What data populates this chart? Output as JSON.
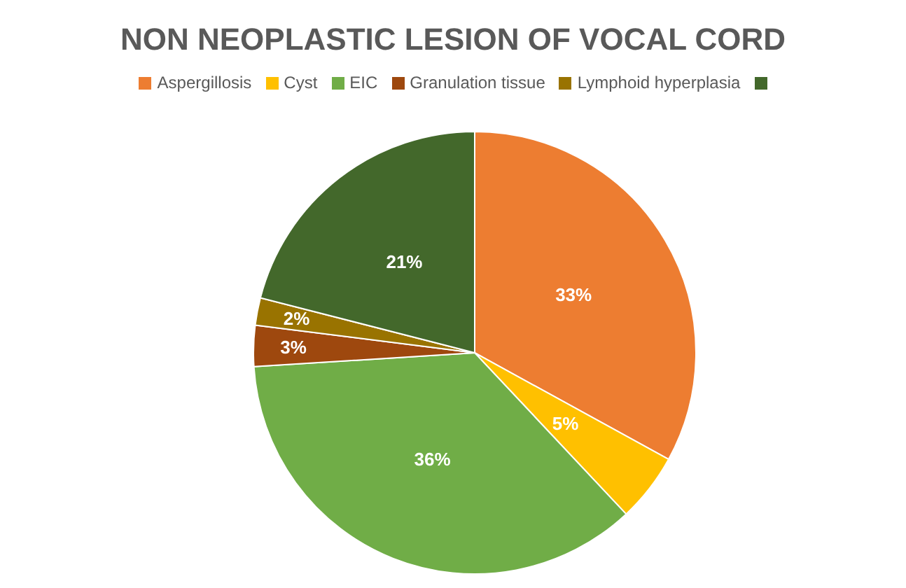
{
  "chart_data": {
    "type": "pie",
    "title": "NON NEOPLASTIC LESION OF VOCAL CORD",
    "categories": [
      "Aspergillosis",
      "Cyst",
      "EIC",
      "Granulation tissue",
      "Lymphoid hyperplasia",
      null
    ],
    "values": [
      33,
      5,
      36,
      3,
      2,
      21
    ],
    "value_labels": [
      "33%",
      "5%",
      "36%",
      "3%",
      "2%",
      "21%"
    ],
    "colors": [
      "#ed7d31",
      "#ffc000",
      "#70ad47",
      "#9e480e",
      "#997300",
      "#43682b"
    ],
    "legend": "top"
  }
}
